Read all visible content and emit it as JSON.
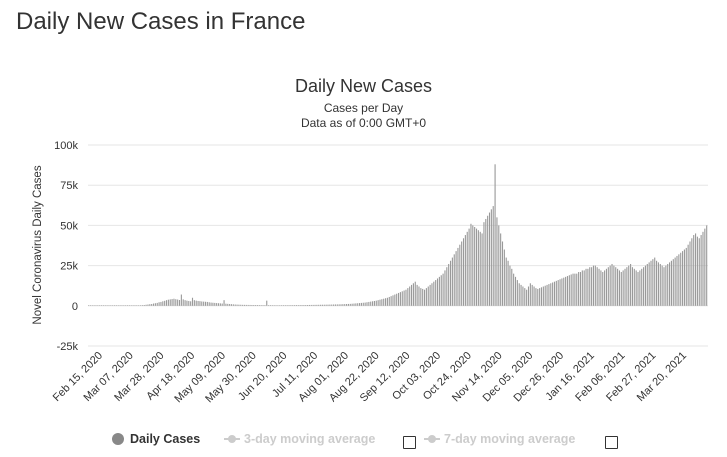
{
  "page": {
    "title": "Daily New Cases in France"
  },
  "chart_data": {
    "type": "bar",
    "title": "Daily New Cases",
    "subtitle": "Cases per Day",
    "subtitle2": "Data as of 0:00 GMT+0",
    "xlabel": "",
    "ylabel": "Novel Coronavirus Daily Cases",
    "ylim": [
      -25000,
      100000
    ],
    "yticks": [
      -25000,
      0,
      25000,
      50000,
      75000,
      100000
    ],
    "ytick_labels": [
      "-25k",
      "0",
      "25k",
      "50k",
      "75k",
      "100k"
    ],
    "x_tick_labels": [
      "Feb 15, 2020",
      "Mar 07, 2020",
      "Mar 28, 2020",
      "Apr 18, 2020",
      "May 09, 2020",
      "May 30, 2020",
      "Jun 20, 2020",
      "Jul 11, 2020",
      "Aug 01, 2020",
      "Aug 22, 2020",
      "Sep 12, 2020",
      "Oct 03, 2020",
      "Oct 24, 2020",
      "Nov 14, 2020",
      "Dec 05, 2020",
      "Dec 26, 2020",
      "Jan 16, 2021",
      "Feb 06, 2021",
      "Feb 27, 2021",
      "Mar 20, 2021"
    ],
    "x_start": "Feb 15, 2020",
    "x_end": "Mar 31, 2021",
    "grid": true,
    "series": [
      {
        "name": "Daily Cases",
        "color": "#999999",
        "values": [
          0,
          0,
          0,
          0,
          0,
          0,
          0,
          0,
          0,
          0,
          0,
          0,
          0,
          1,
          0,
          0,
          4,
          1,
          2,
          10,
          28,
          40,
          50,
          60,
          80,
          120,
          180,
          250,
          300,
          400,
          500,
          650,
          800,
          1000,
          1100,
          1400,
          1600,
          1800,
          2200,
          2400,
          2800,
          3100,
          3500,
          3800,
          4000,
          4200,
          4400,
          4100,
          3900,
          3600,
          7000,
          4000,
          3500,
          3200,
          3000,
          2800,
          5000,
          3500,
          3200,
          3000,
          2900,
          2700,
          2600,
          2500,
          2400,
          2200,
          2000,
          1900,
          1800,
          1700,
          1600,
          1500,
          1400,
          3500,
          1300,
          1200,
          1100,
          1000,
          900,
          800,
          750,
          700,
          650,
          600,
          580,
          560,
          540,
          520,
          500,
          480,
          460,
          440,
          420,
          400,
          390,
          380,
          3200,
          370,
          360,
          350,
          340,
          330,
          320,
          330,
          340,
          350,
          360,
          370,
          380,
          390,
          400,
          410,
          420,
          430,
          440,
          450,
          460,
          480,
          500,
          520,
          540,
          560,
          580,
          600,
          620,
          640,
          660,
          680,
          700,
          720,
          750,
          780,
          810,
          840,
          870,
          900,
          950,
          1000,
          1050,
          1100,
          1150,
          1200,
          1300,
          1400,
          1500,
          1600,
          1700,
          1800,
          1900,
          2000,
          2200,
          2400,
          2600,
          2800,
          3000,
          3200,
          3500,
          3800,
          4100,
          4400,
          4700,
          5000,
          5500,
          6000,
          6500,
          7000,
          7500,
          8000,
          8500,
          9000,
          9500,
          10000,
          11000,
          12000,
          13000,
          14000,
          15000,
          13000,
          12000,
          11000,
          10500,
          10000,
          11000,
          12000,
          13000,
          14000,
          15000,
          16000,
          17000,
          18000,
          19000,
          20000,
          22000,
          24000,
          26000,
          28000,
          30000,
          32000,
          34000,
          36000,
          38000,
          40000,
          42000,
          44000,
          46000,
          48000,
          51000,
          50000,
          49000,
          48000,
          47000,
          46000,
          45000,
          52000,
          54000,
          56000,
          58000,
          60000,
          62000,
          88000,
          55000,
          50000,
          45000,
          40000,
          35000,
          30000,
          28000,
          25000,
          23000,
          20000,
          18000,
          16000,
          14000,
          13000,
          12000,
          11000,
          10000,
          12000,
          14000,
          13000,
          12000,
          11000,
          10500,
          11000,
          11500,
          12000,
          12500,
          13000,
          13500,
          14000,
          14500,
          15000,
          15500,
          16000,
          16500,
          17000,
          17500,
          18000,
          18500,
          19000,
          19500,
          20000,
          20000,
          20000,
          21000,
          21000,
          22000,
          22000,
          23000,
          23000,
          24000,
          24000,
          25000,
          25000,
          24000,
          23000,
          22000,
          21000,
          22000,
          23000,
          24000,
          25000,
          26000,
          25000,
          24000,
          23000,
          22000,
          21000,
          22000,
          23000,
          24000,
          25000,
          26000,
          24000,
          23000,
          22000,
          21000,
          22000,
          23000,
          24000,
          25000,
          26000,
          27000,
          28000,
          29000,
          30000,
          28000,
          27000,
          26000,
          25000,
          24000,
          25000,
          26000,
          27000,
          28000,
          29000,
          30000,
          31000,
          32000,
          33000,
          34000,
          35000,
          36000,
          38000,
          40000,
          42000,
          44000,
          45000,
          43000,
          42000,
          44000,
          46000,
          48000,
          50000
        ]
      }
    ],
    "legend": {
      "placement": "bottom-center",
      "items": [
        "Daily Cases",
        "3-day moving average",
        "7-day moving average"
      ]
    }
  }
}
